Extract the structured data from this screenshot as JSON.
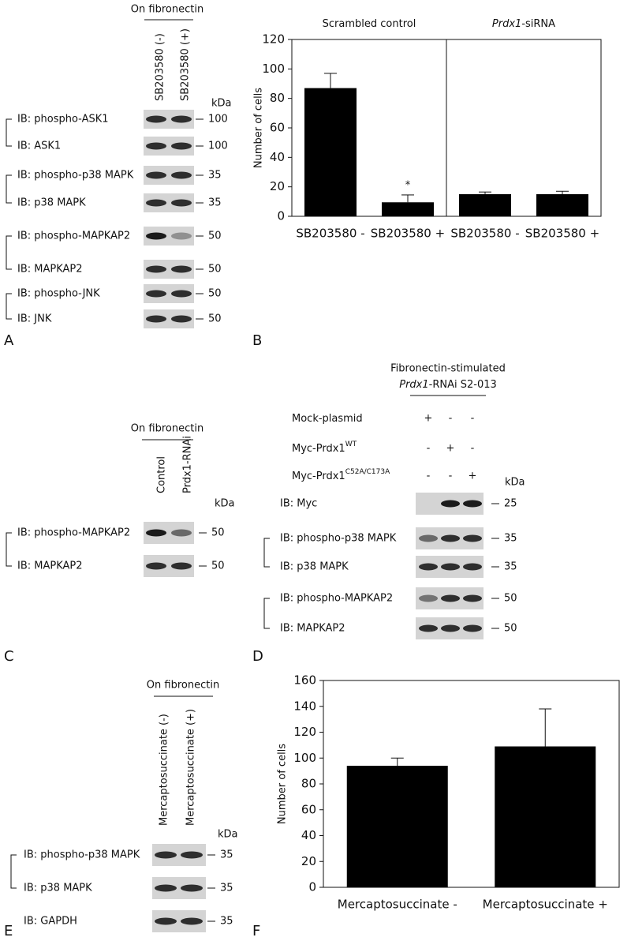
{
  "letters": [
    "A",
    "B",
    "C",
    "D",
    "E",
    "F"
  ],
  "blots": {
    "A": {
      "header": "On fibronectin",
      "lanes": [
        "SB203580 (-)",
        "SB203580 (+)"
      ],
      "unit": "kDa",
      "rows": [
        {
          "label": "IB: phospho-ASK1",
          "kda": 100
        },
        {
          "label": "IB: ASK1",
          "kda": 100
        },
        {
          "label": "IB: phospho-p38 MAPK",
          "kda": 35
        },
        {
          "label": "IB: p38 MAPK",
          "kda": 35
        },
        {
          "label": "IB: phospho-MAPKAP2",
          "kda": 50
        },
        {
          "label": "IB: MAPKAP2",
          "kda": 50
        },
        {
          "label": "IB: phospho-JNK",
          "kda": 50
        },
        {
          "label": "IB: JNK",
          "kda": 50
        }
      ]
    },
    "C": {
      "header": "On fibronectin",
      "lanes": [
        "Control",
        "Prdx1-RNAi"
      ],
      "unit": "kDa",
      "rows": [
        {
          "label": "IB: phospho-MAPKAP2",
          "kda": 50
        },
        {
          "label": "IB:  MAPKAP2",
          "kda": 50
        }
      ]
    },
    "D": {
      "header_lines": [
        "Fibronectin-stimulated",
        {
          "italic": "Prdx1",
          "text": "-RNAi S2-013"
        }
      ],
      "unit": "kDa",
      "treatments": [
        {
          "label": "Mock-plasmid",
          "signs": [
            "+",
            "-",
            "-"
          ]
        },
        {
          "label": "Myc-Prdx1",
          "sup": "WT",
          "signs": [
            "-",
            "+",
            "-"
          ]
        },
        {
          "label": "Myc-Prdx1",
          "sup": "C52A/C173A",
          "signs": [
            "-",
            "-",
            "+"
          ]
        }
      ],
      "rows": [
        {
          "label": "IB: Myc",
          "kda": 25
        },
        {
          "label": "IB: phospho-p38 MAPK",
          "kda": 35
        },
        {
          "label": "IB: p38 MAPK",
          "kda": 35
        },
        {
          "label": "IB: phospho-MAPKAP2",
          "kda": 50
        },
        {
          "label": "IB: MAPKAP2",
          "kda": 50
        }
      ]
    },
    "E": {
      "header": "On fibronectin",
      "lanes": [
        "Mercaptosuccinate (-)",
        "Mercaptosuccinate (+)"
      ],
      "unit": "kDa",
      "rows": [
        {
          "label": "IB: phospho-p38 MAPK",
          "kda": 35
        },
        {
          "label": "IB: p38 MAPK",
          "kda": 35
        },
        {
          "label": "IB: GAPDH",
          "kda": 35
        }
      ]
    }
  },
  "chart_data": [
    {
      "type": "bar",
      "ylabel": "Number of cells",
      "groups": [
        {
          "text": "Scrambled control"
        },
        {
          "italic": "Prdx1",
          "text": "-siRNA"
        }
      ],
      "categories": [
        "SB203580 -",
        "SB203580 +",
        "SB203580 -",
        "SB203580 +"
      ],
      "values": [
        87,
        9.5,
        15,
        15
      ],
      "errors": [
        10,
        5,
        1.5,
        2
      ],
      "color": "#000000",
      "annotation": "*",
      "ylim": [
        0,
        120
      ],
      "yticks": [
        0,
        20,
        40,
        60,
        80,
        100,
        120
      ]
    },
    {
      "type": "bar",
      "ylabel": "Number of cells",
      "categories": [
        "Mercaptosuccinate -",
        "Mercaptosuccinate +"
      ],
      "values": [
        94,
        109
      ],
      "errors": [
        6,
        29
      ],
      "color": "#000000",
      "ylim": [
        0,
        160
      ],
      "yticks": [
        0,
        20,
        40,
        60,
        80,
        100,
        120,
        140,
        160
      ]
    }
  ]
}
